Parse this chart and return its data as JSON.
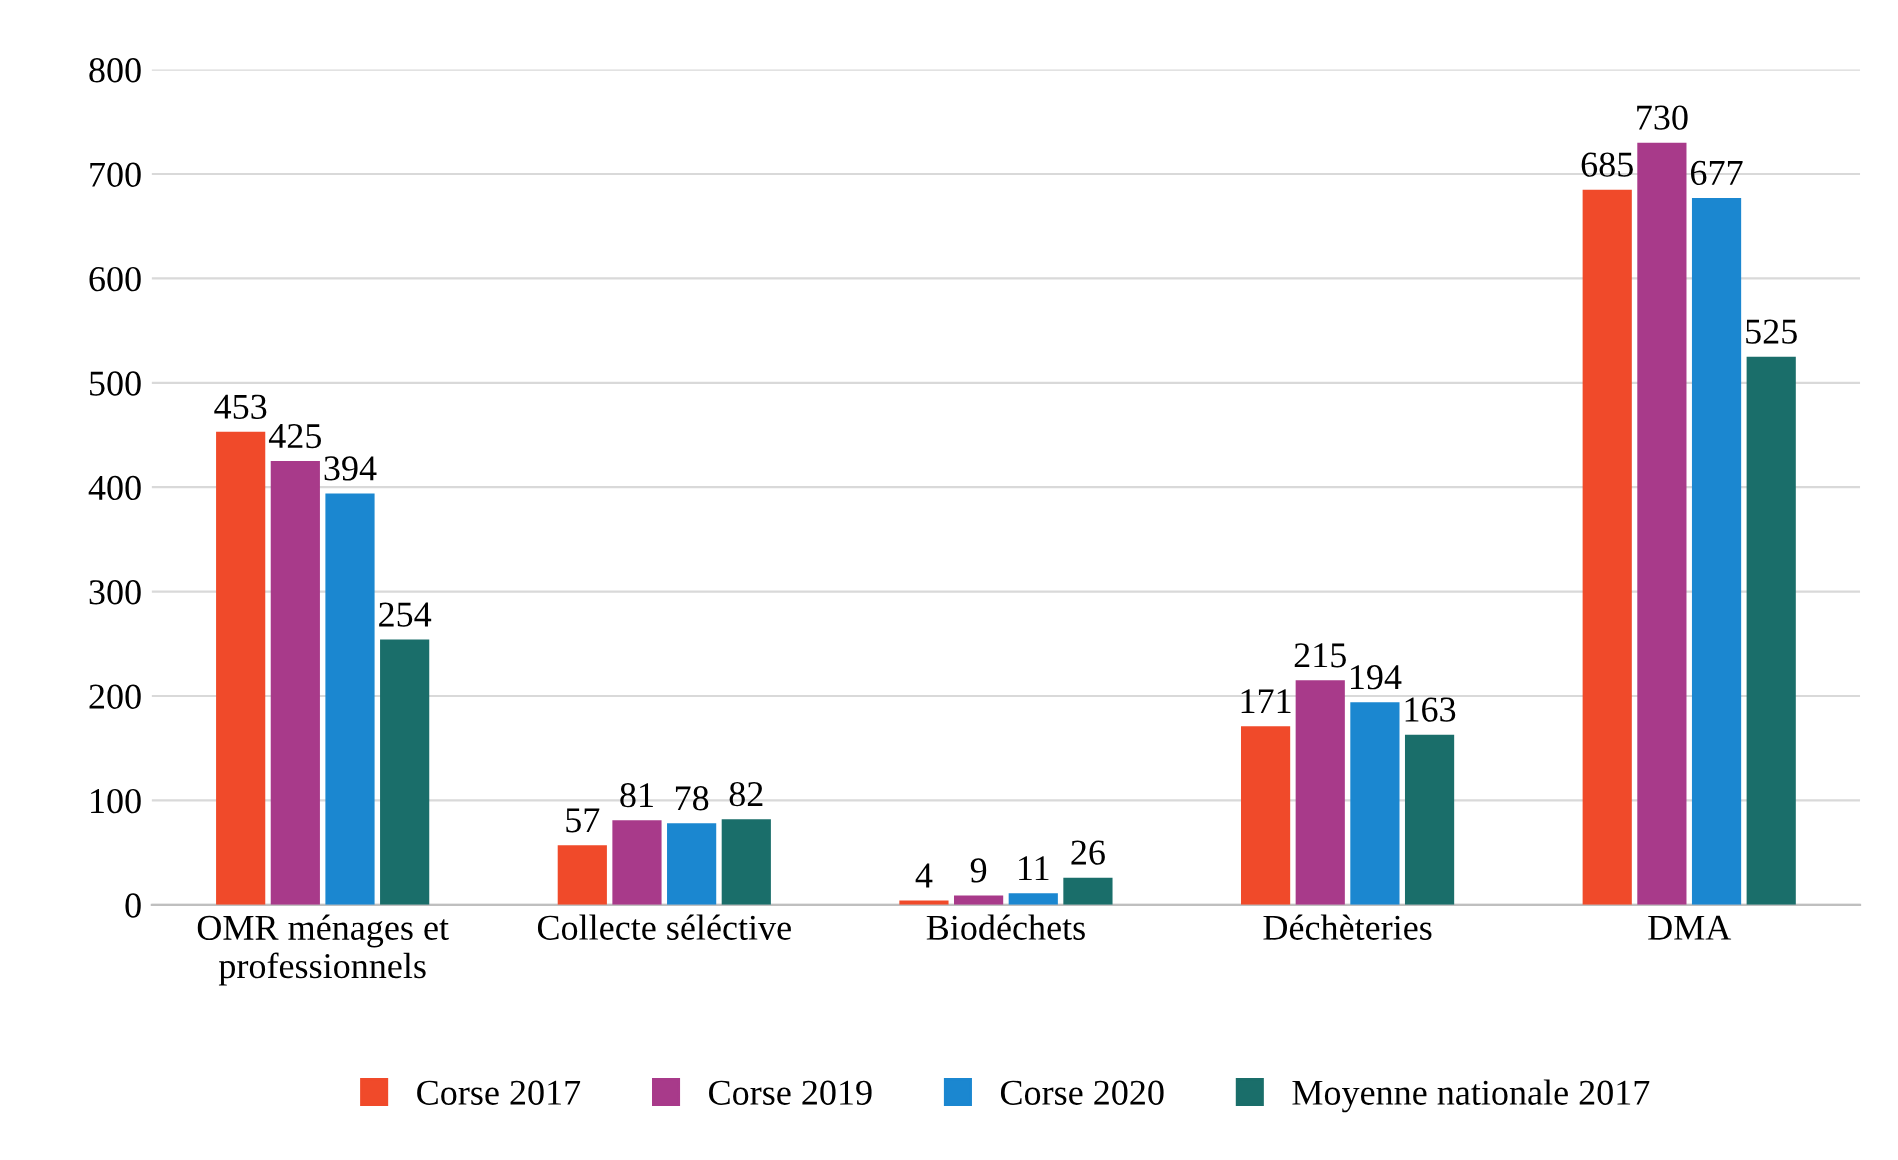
{
  "chart_data": {
    "type": "bar",
    "categories": [
      "OMR ménages et\nprofessionnels",
      "Collecte séléctive",
      "Biodéchets",
      "Déchèteries",
      "DMA"
    ],
    "series": [
      {
        "name": "Corse 2017",
        "color": "#f04a2a",
        "values": [
          453,
          57,
          4,
          171,
          685
        ]
      },
      {
        "name": "Corse 2019",
        "color": "#a83a8a",
        "values": [
          425,
          81,
          9,
          215,
          730
        ]
      },
      {
        "name": "Corse 2020",
        "color": "#1b87d0",
        "values": [
          394,
          78,
          11,
          194,
          677
        ]
      },
      {
        "name": "Moyenne nationale 2017",
        "color": "#1a6e6a",
        "values": [
          254,
          82,
          26,
          163,
          525
        ]
      }
    ],
    "ylim": [
      0,
      800
    ],
    "yticks": [
      0,
      100,
      200,
      300,
      400,
      500,
      600,
      700,
      800
    ],
    "grid": "y",
    "legend": "bottom",
    "data_labels": true
  }
}
